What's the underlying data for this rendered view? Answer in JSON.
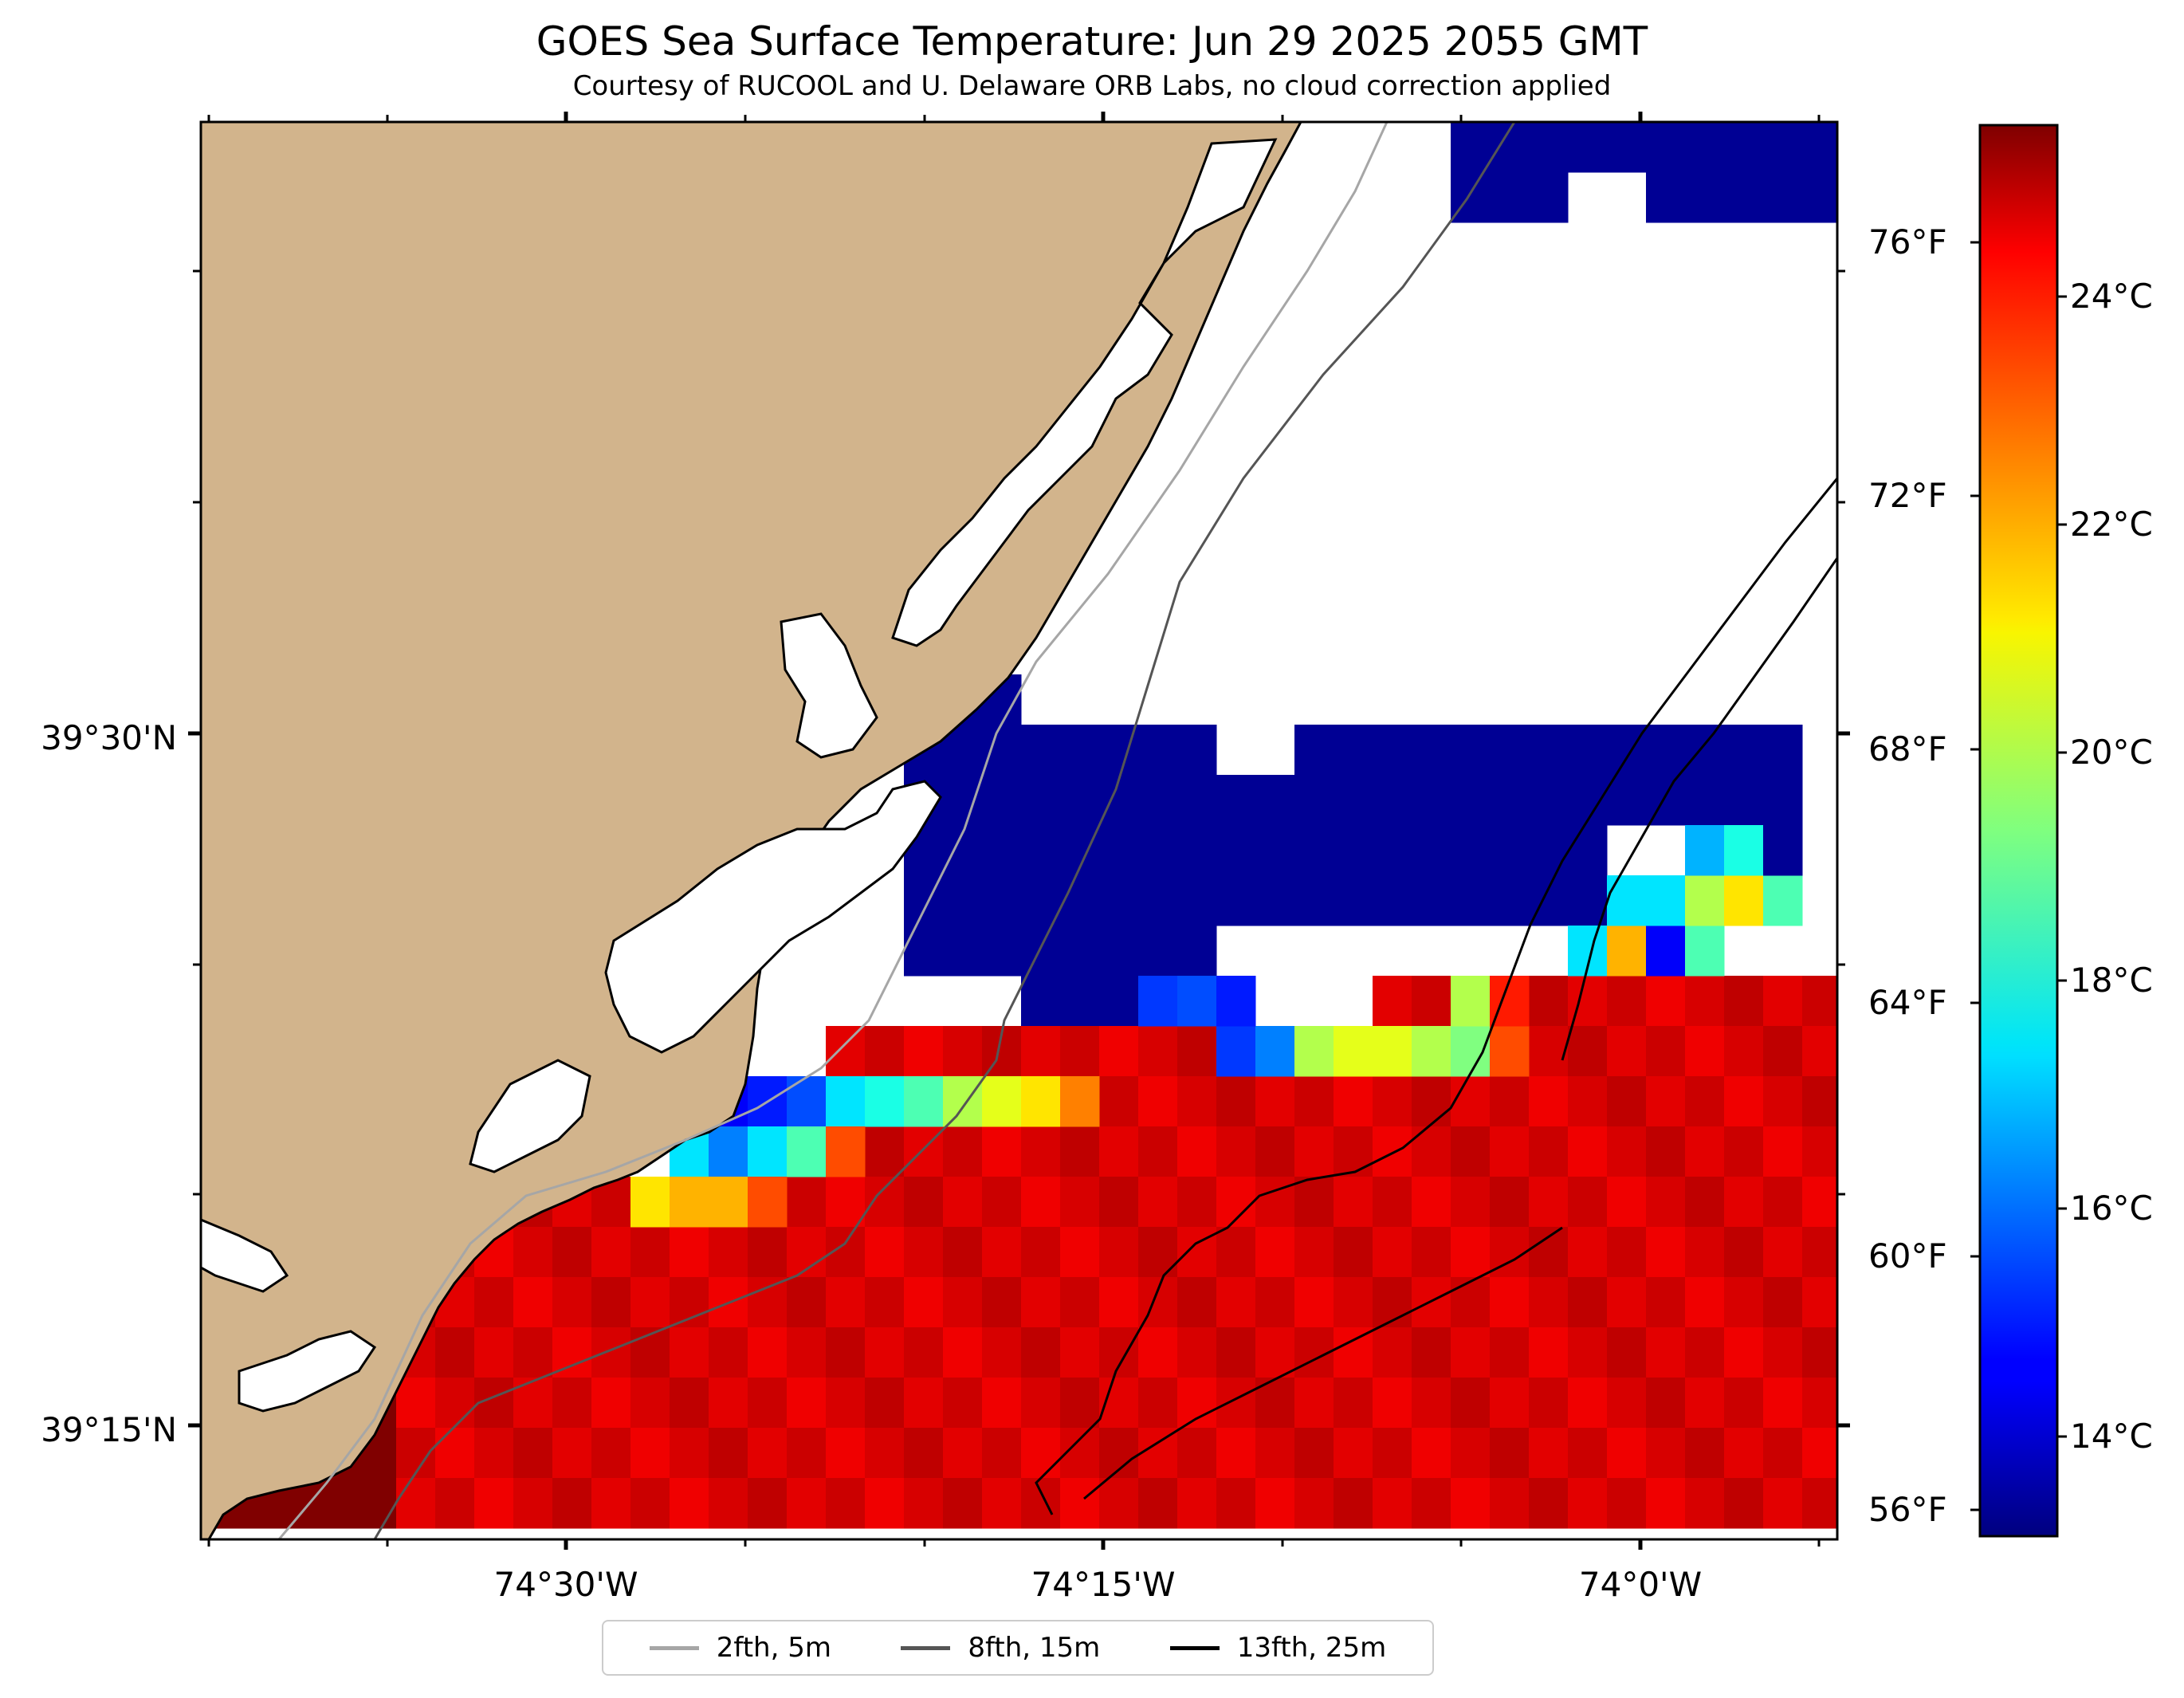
{
  "title": "GOES Sea Surface Temperature: Jun 29 2025 2055 GMT",
  "subtitle": "Courtesy of RUCOOL and U. Delaware ORB Labs, no cloud correction applied",
  "map": {
    "lat_labels": [
      "39°30'N",
      "39°15'N"
    ],
    "lon_labels": [
      "74°30'W",
      "74°15'W",
      "74°0'W"
    ],
    "land_color": "#d2b48c",
    "ocean_color": "#ffffff",
    "colormap": "jet",
    "sst_range_celsius": [
      12.7,
      26.0
    ]
  },
  "colorbar": {
    "celsius_labels": [
      "24°C",
      "22°C",
      "20°C",
      "18°C",
      "16°C",
      "14°C"
    ],
    "fahrenheit_labels": [
      "76°F",
      "72°F",
      "68°F",
      "64°F",
      "60°F",
      "56°F"
    ]
  },
  "legend": {
    "items": [
      {
        "label": "2fth, 5m",
        "color": "#a6a6a6"
      },
      {
        "label": "8fth, 15m",
        "color": "#555555"
      },
      {
        "label": "13fth, 25m",
        "color": "#000000"
      }
    ]
  }
}
